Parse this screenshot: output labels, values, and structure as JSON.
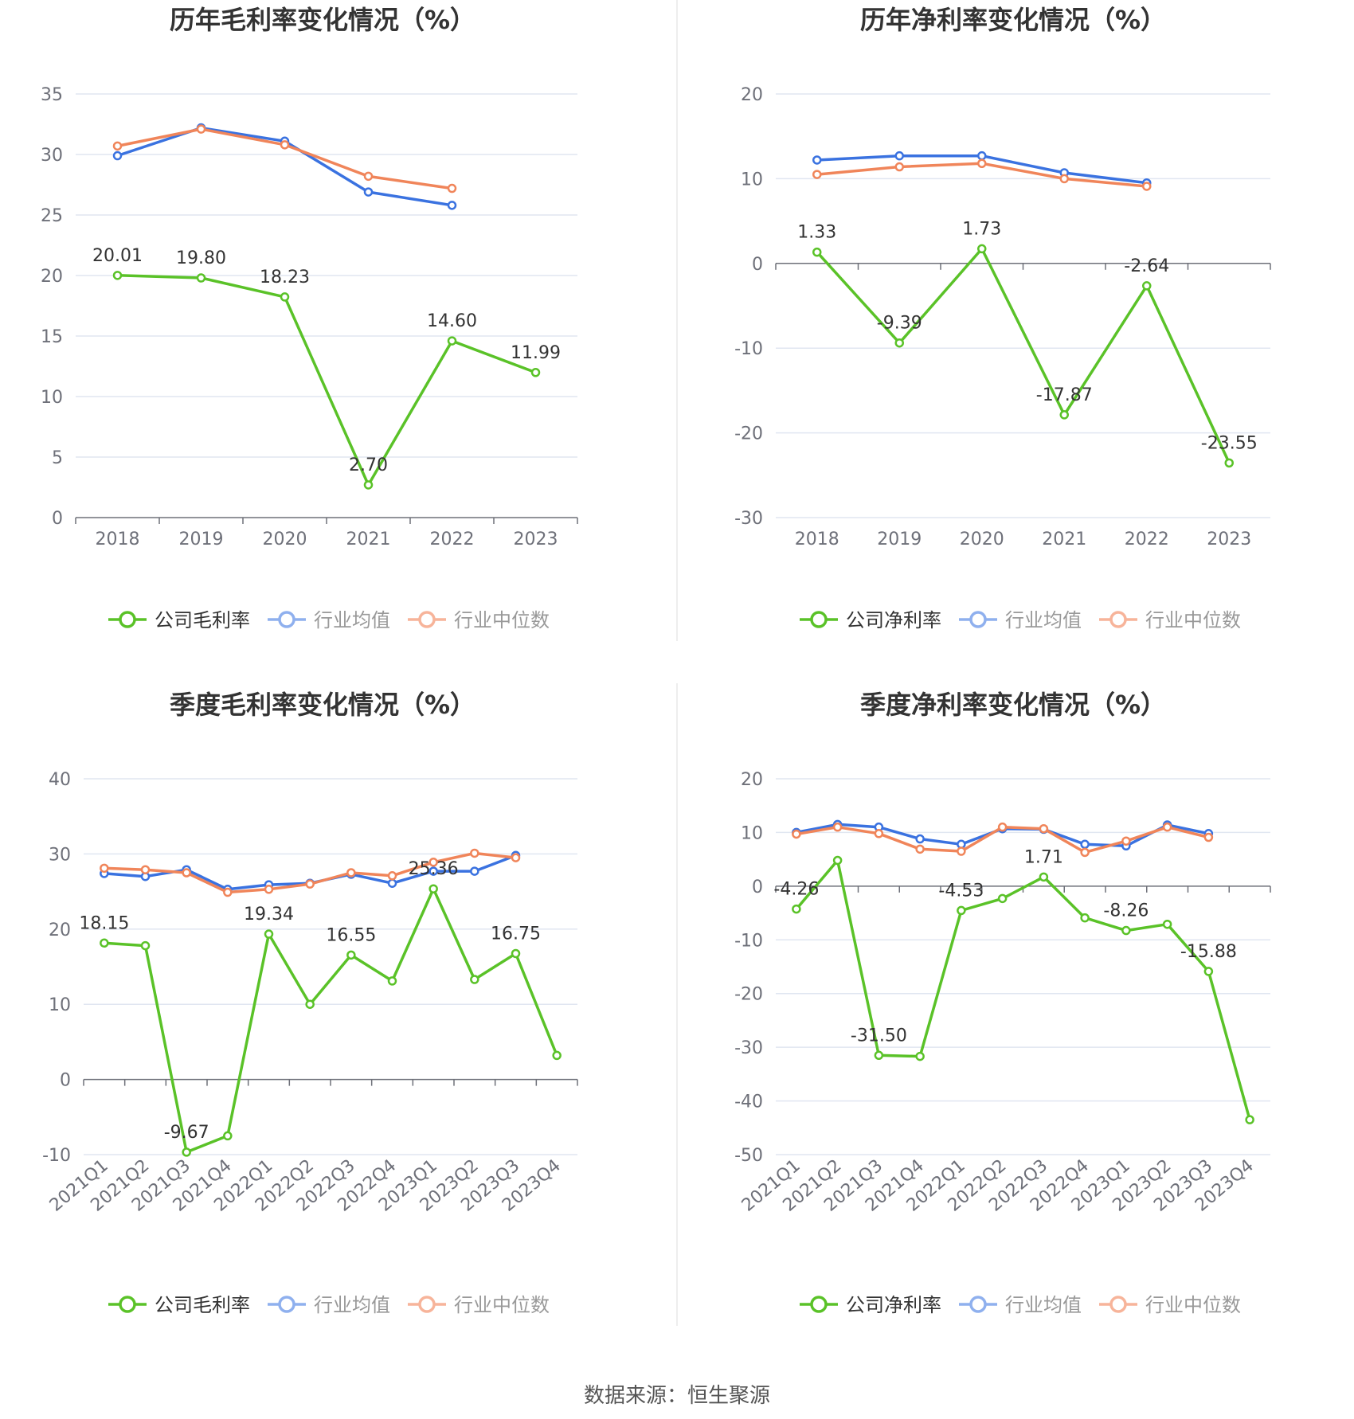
{
  "source": "数据来源：恒生聚源",
  "colors": {
    "company": "#5ac228",
    "avg": "#3a72e0",
    "median": "#f0855a",
    "avg_legend": "#8fb0ee",
    "median_legend": "#f7b49a",
    "grid": "#e0e6f1",
    "axis": "#6e7079"
  },
  "chart_data": [
    {
      "type": "line",
      "title": "历年毛利率变化情况（%）",
      "categories": [
        "2018",
        "2019",
        "2020",
        "2021",
        "2022",
        "2023"
      ],
      "yticks": [
        0,
        5,
        10,
        15,
        20,
        25,
        30,
        35
      ],
      "ylim": [
        0,
        35
      ],
      "grid": true,
      "legend_position": "bottom",
      "series": [
        {
          "name": "公司毛利率",
          "role": "company",
          "values": [
            20.01,
            19.8,
            18.23,
            2.7,
            14.6,
            11.99
          ],
          "labels": [
            "20.01",
            "19.80",
            "18.23",
            "2.70",
            "14.60",
            "11.99"
          ]
        },
        {
          "name": "行业均值",
          "role": "avg",
          "values": [
            29.9,
            32.2,
            31.1,
            26.9,
            25.8,
            null
          ]
        },
        {
          "name": "行业中位数",
          "role": "median",
          "values": [
            30.7,
            32.1,
            30.8,
            28.2,
            27.2,
            null
          ]
        }
      ]
    },
    {
      "type": "line",
      "title": "历年净利率变化情况（%）",
      "categories": [
        "2018",
        "2019",
        "2020",
        "2021",
        "2022",
        "2023"
      ],
      "yticks": [
        -30,
        -20,
        -10,
        0,
        10,
        20
      ],
      "ylim": [
        -30,
        20
      ],
      "grid": true,
      "legend_position": "bottom",
      "series": [
        {
          "name": "公司净利率",
          "role": "company",
          "values": [
            1.33,
            -9.39,
            1.73,
            -17.87,
            -2.64,
            -23.55
          ],
          "labels": [
            "1.33",
            "-9.39",
            "1.73",
            "-17.87",
            "-2.64",
            "-23.55"
          ]
        },
        {
          "name": "行业均值",
          "role": "avg",
          "values": [
            12.2,
            12.7,
            12.7,
            10.7,
            9.5,
            null
          ]
        },
        {
          "name": "行业中位数",
          "role": "median",
          "values": [
            10.5,
            11.4,
            11.8,
            10.0,
            9.1,
            null
          ]
        }
      ]
    },
    {
      "type": "line",
      "title": "季度毛利率变化情况（%）",
      "categories": [
        "2021Q1",
        "2021Q2",
        "2021Q3",
        "2021Q4",
        "2022Q1",
        "2022Q2",
        "2022Q3",
        "2022Q4",
        "2023Q1",
        "2023Q2",
        "2023Q3",
        "2023Q4"
      ],
      "yticks": [
        -10,
        0,
        10,
        20,
        30,
        40
      ],
      "ylim": [
        -10,
        40
      ],
      "grid": true,
      "legend_position": "bottom",
      "series": [
        {
          "name": "公司毛利率",
          "role": "company",
          "values": [
            18.15,
            17.8,
            -9.67,
            -7.5,
            19.34,
            10.0,
            16.55,
            13.1,
            25.36,
            13.3,
            16.75,
            3.2
          ],
          "labels": [
            "18.15",
            null,
            "-9.67",
            null,
            "19.34",
            null,
            "16.55",
            null,
            "25.36",
            null,
            "16.75",
            null
          ]
        },
        {
          "name": "行业均值",
          "role": "avg",
          "values": [
            27.4,
            27.0,
            27.9,
            25.3,
            25.9,
            26.1,
            27.3,
            26.1,
            27.7,
            27.7,
            29.8,
            null
          ]
        },
        {
          "name": "行业中位数",
          "role": "median",
          "values": [
            28.1,
            27.9,
            27.5,
            24.9,
            25.3,
            26.0,
            27.5,
            27.1,
            28.9,
            30.1,
            29.5,
            null
          ]
        }
      ]
    },
    {
      "type": "line",
      "title": "季度净利率变化情况（%）",
      "categories": [
        "2021Q1",
        "2021Q2",
        "2021Q3",
        "2021Q4",
        "2022Q1",
        "2022Q2",
        "2022Q3",
        "2022Q4",
        "2023Q1",
        "2023Q2",
        "2023Q3",
        "2023Q4"
      ],
      "yticks": [
        -50,
        -40,
        -30,
        -20,
        -10,
        0,
        10,
        20
      ],
      "ylim": [
        -50,
        20
      ],
      "grid": true,
      "legend_position": "bottom",
      "series": [
        {
          "name": "公司净利率",
          "role": "company",
          "values": [
            -4.26,
            4.8,
            -31.5,
            -31.7,
            -4.53,
            -2.3,
            1.71,
            -5.9,
            -8.26,
            -7.1,
            -15.88,
            -43.5
          ],
          "labels": [
            "-4.26",
            null,
            "-31.50",
            null,
            "-4.53",
            null,
            "1.71",
            null,
            "-8.26",
            null,
            "-15.88",
            null
          ]
        },
        {
          "name": "行业均值",
          "role": "avg",
          "values": [
            10.0,
            11.5,
            11.0,
            8.8,
            7.8,
            10.7,
            10.6,
            7.8,
            7.5,
            11.4,
            9.8,
            null
          ]
        },
        {
          "name": "行业中位数",
          "role": "median",
          "values": [
            9.7,
            11.0,
            9.8,
            6.9,
            6.5,
            11.0,
            10.7,
            6.3,
            8.4,
            11.0,
            9.1,
            null
          ]
        }
      ]
    }
  ]
}
